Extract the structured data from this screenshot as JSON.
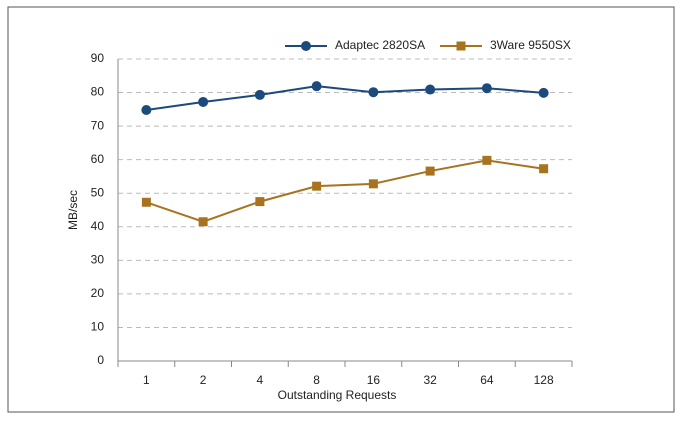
{
  "chart_data": {
    "type": "line",
    "categories": [
      "1",
      "2",
      "4",
      "8",
      "16",
      "32",
      "64",
      "128"
    ],
    "series": [
      {
        "name": "Adaptec 2820SA",
        "color": "#1c4a7c",
        "marker": "circle",
        "values": [
          74.8,
          77.2,
          79.3,
          81.9,
          80.1,
          80.9,
          81.3,
          79.9
        ]
      },
      {
        "name": "3Ware 9550SX",
        "color": "#a8731f",
        "marker": "square",
        "values": [
          47.3,
          41.5,
          47.5,
          52.1,
          52.8,
          56.6,
          59.8,
          57.3
        ]
      }
    ],
    "xlabel": "Outstanding Requests",
    "ylabel": "MB/sec",
    "ylim": [
      0,
      90
    ],
    "yticks": [
      0,
      10,
      20,
      30,
      40,
      50,
      60,
      70,
      80,
      90
    ],
    "grid": true,
    "legend": "top"
  }
}
